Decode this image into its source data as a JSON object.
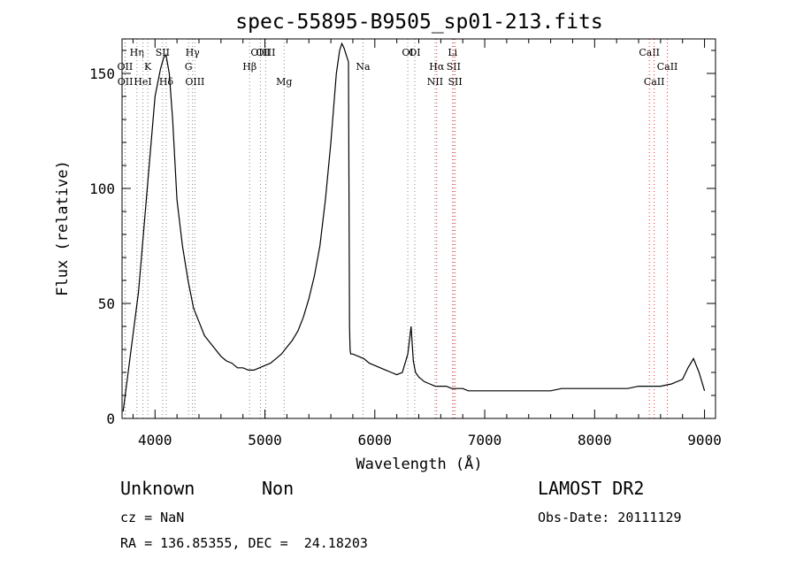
{
  "chart_data": {
    "type": "line",
    "title": "spec-55895-B9505_sp01-213.fits",
    "xlabel": "Wavelength (Å)",
    "ylabel": "Flux (relative)",
    "xlim": [
      3700,
      9100
    ],
    "ylim": [
      0,
      165
    ],
    "xticks": [
      4000,
      5000,
      6000,
      7000,
      8000,
      9000
    ],
    "yticks": [
      0,
      50,
      100,
      150
    ],
    "grid": false,
    "colors": {
      "spectrum": "#000000",
      "line_marker": "#888888",
      "line_marker_red": "#ff2a2a"
    },
    "spectrum": {
      "x": [
        3710,
        3850,
        4000,
        4050,
        4080,
        4100,
        4130,
        4160,
        4200,
        4250,
        4300,
        4350,
        4400,
        4450,
        4500,
        4550,
        4600,
        4650,
        4700,
        4750,
        4800,
        4850,
        4900,
        4950,
        5000,
        5050,
        5100,
        5150,
        5200,
        5250,
        5300,
        5350,
        5400,
        5450,
        5500,
        5550,
        5600,
        5650,
        5680,
        5700,
        5720,
        5740,
        5760,
        5770,
        5775,
        5780,
        5800,
        5850,
        5900,
        5950,
        6000,
        6050,
        6100,
        6150,
        6200,
        6250,
        6300,
        6330,
        6350,
        6370,
        6400,
        6450,
        6500,
        6550,
        6600,
        6650,
        6700,
        6750,
        6800,
        6850,
        6900,
        6950,
        7000,
        7100,
        7200,
        7300,
        7400,
        7500,
        7600,
        7700,
        7800,
        7900,
        8000,
        8100,
        8200,
        8300,
        8400,
        8500,
        8600,
        8700,
        8800,
        8850,
        8900,
        8950,
        9000
      ],
      "y": [
        3,
        55,
        140,
        152,
        157,
        158,
        150,
        130,
        95,
        75,
        60,
        48,
        42,
        36,
        33,
        30,
        27,
        25,
        24,
        22,
        22,
        21,
        21,
        22,
        23,
        24,
        26,
        28,
        31,
        34,
        38,
        44,
        52,
        62,
        75,
        95,
        120,
        150,
        160,
        163,
        161,
        158,
        155,
        40,
        30,
        28,
        28,
        27,
        26,
        24,
        23,
        22,
        21,
        20,
        19,
        20,
        28,
        40,
        25,
        20,
        18,
        16,
        15,
        14,
        14,
        14,
        13,
        13,
        13,
        12,
        12,
        12,
        12,
        12,
        12,
        12,
        12,
        12,
        12,
        13,
        13,
        13,
        13,
        13,
        13,
        13,
        14,
        14,
        14,
        15,
        17,
        22,
        26,
        20,
        12
      ]
    },
    "lines": [
      {
        "label": "OII",
        "wavelength": 3727,
        "row": 2,
        "color": "grey"
      },
      {
        "label": "OII",
        "wavelength": 3729,
        "row": 3,
        "color": "grey"
      },
      {
        "label": "Hη",
        "wavelength": 3835,
        "row": 1,
        "color": "grey"
      },
      {
        "label": "HeI",
        "wavelength": 3889,
        "row": 3,
        "color": "grey"
      },
      {
        "label": "K",
        "wavelength": 3934,
        "row": 2,
        "color": "grey"
      },
      {
        "label": "SII",
        "wavelength": 4069,
        "row": 1,
        "color": "grey"
      },
      {
        "label": "Hδ",
        "wavelength": 4102,
        "row": 3,
        "color": "grey"
      },
      {
        "label": "Hγ",
        "wavelength": 4341,
        "row": 1,
        "color": "grey"
      },
      {
        "label": "G",
        "wavelength": 4305,
        "row": 2,
        "color": "grey"
      },
      {
        "label": "OIII",
        "wavelength": 4363,
        "row": 3,
        "color": "grey"
      },
      {
        "label": "Hβ",
        "wavelength": 4861,
        "row": 2,
        "color": "grey"
      },
      {
        "label": "OIII",
        "wavelength": 4959,
        "row": 1,
        "color": "grey"
      },
      {
        "label": "OIII",
        "wavelength": 5007,
        "row": 1,
        "color": "grey"
      },
      {
        "label": "Mg",
        "wavelength": 5175,
        "row": 3,
        "color": "grey"
      },
      {
        "label": "Na",
        "wavelength": 5893,
        "row": 2,
        "color": "grey"
      },
      {
        "label": "OI",
        "wavelength": 6300,
        "row": 1,
        "color": "grey"
      },
      {
        "label": "OI",
        "wavelength": 6363,
        "row": 1,
        "color": "grey"
      },
      {
        "label": "NII",
        "wavelength": 6548,
        "row": 3,
        "color": "grey"
      },
      {
        "label": "Hα",
        "wavelength": 6563,
        "row": 2,
        "color": "red"
      },
      {
        "label": "Li",
        "wavelength": 6708,
        "row": 1,
        "color": "red"
      },
      {
        "label": "SII",
        "wavelength": 6717,
        "row": 2,
        "color": "grey"
      },
      {
        "label": "SII",
        "wavelength": 6731,
        "row": 3,
        "color": "red"
      },
      {
        "label": "CaII",
        "wavelength": 8498,
        "row": 1,
        "color": "red"
      },
      {
        "label": "CaII",
        "wavelength": 8542,
        "row": 3,
        "color": "red"
      },
      {
        "label": "CaII",
        "wavelength": 8662,
        "row": 2,
        "color": "red"
      }
    ]
  },
  "info": {
    "class": "Unknown",
    "subclass": "Non",
    "survey": "LAMOST DR2",
    "cz": "cz = NaN",
    "obs_date": "Obs-Date: 20111129",
    "coords": "RA = 136.85355, DEC =  24.18203"
  }
}
